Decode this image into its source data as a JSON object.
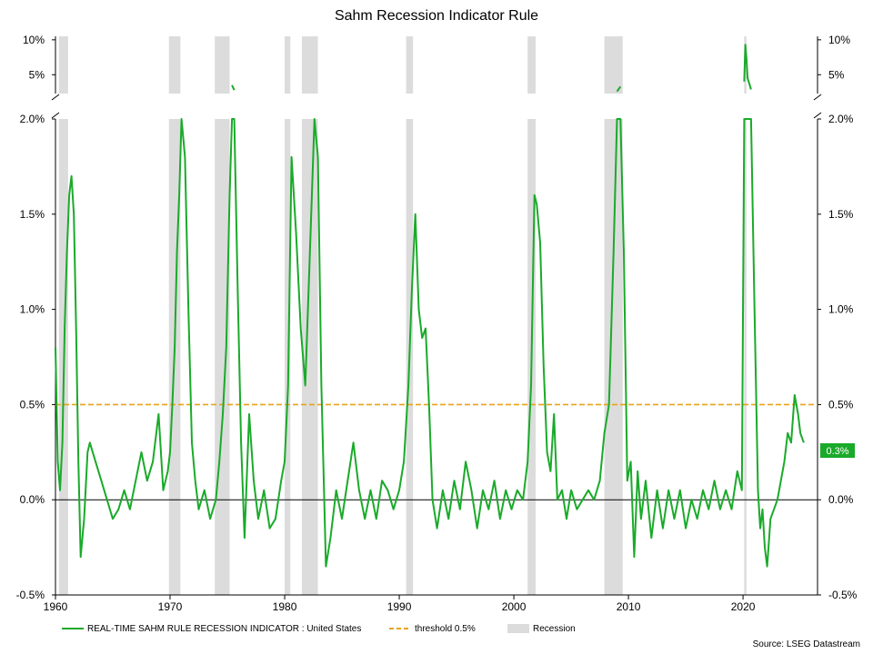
{
  "chart_data": {
    "type": "line",
    "title": "Sahm Recession Indicator Rule",
    "source": "Source: LSEG Datastream",
    "last_value_label": "0.3%",
    "x_ticks": [
      1960,
      1970,
      1980,
      1990,
      2000,
      2010,
      2020
    ],
    "x_tick_labels": [
      "1960",
      "1970",
      "1980",
      "1990",
      "2000",
      "2010",
      "2020"
    ],
    "xlim": [
      1960,
      2026.5
    ],
    "upper_panel": {
      "ylim": [
        2.3,
        10.5
      ],
      "ticks": [
        5,
        10
      ],
      "tick_labels": [
        "5%",
        "10%"
      ]
    },
    "lower_panel": {
      "ylim": [
        -0.5,
        2.0
      ],
      "ticks": [
        -0.5,
        0.0,
        0.5,
        1.0,
        1.5,
        2.0
      ],
      "tick_labels": [
        "-0.5%",
        "0.0%",
        "0.5%",
        "1.0%",
        "1.5%",
        "2.0%"
      ]
    },
    "threshold": 0.5,
    "recessions": [
      [
        1960.3,
        1961.1
      ],
      [
        1969.9,
        1970.9
      ],
      [
        1973.9,
        1975.2
      ],
      [
        1980.0,
        1980.5
      ],
      [
        1981.5,
        1982.9
      ],
      [
        1990.6,
        1991.2
      ],
      [
        2001.2,
        2001.9
      ],
      [
        2007.9,
        2009.5
      ],
      [
        2020.1,
        2020.3
      ]
    ],
    "series": [
      {
        "name": "REAL-TIME SAHM RULE RECESSION INDICATOR : United States",
        "color": "#1aaa2a",
        "x": [
          1960.0,
          1960.2,
          1960.4,
          1960.6,
          1960.8,
          1961.0,
          1961.2,
          1961.4,
          1961.6,
          1961.8,
          1962.0,
          1962.2,
          1962.5,
          1962.8,
          1963.0,
          1963.5,
          1964.0,
          1964.5,
          1965.0,
          1965.5,
          1966.0,
          1966.5,
          1967.0,
          1967.5,
          1968.0,
          1968.5,
          1969.0,
          1969.4,
          1969.8,
          1970.0,
          1970.2,
          1970.4,
          1970.6,
          1970.8,
          1971.0,
          1971.3,
          1971.6,
          1971.9,
          1972.2,
          1972.5,
          1973.0,
          1973.5,
          1974.0,
          1974.3,
          1974.6,
          1974.9,
          1975.2,
          1975.4,
          1975.6,
          1975.9,
          1976.2,
          1976.5,
          1976.9,
          1977.3,
          1977.7,
          1978.2,
          1978.7,
          1979.2,
          1979.7,
          1980.0,
          1980.3,
          1980.6,
          1981.0,
          1981.4,
          1981.8,
          1982.2,
          1982.6,
          1982.9,
          1983.2,
          1983.6,
          1984.0,
          1984.5,
          1985.0,
          1985.5,
          1986.0,
          1986.5,
          1987.0,
          1987.5,
          1988.0,
          1988.5,
          1989.0,
          1989.5,
          1990.0,
          1990.4,
          1990.8,
          1991.1,
          1991.4,
          1991.7,
          1992.0,
          1992.3,
          1992.6,
          1992.9,
          1993.3,
          1993.8,
          1994.3,
          1994.8,
          1995.3,
          1995.8,
          1996.3,
          1996.8,
          1997.3,
          1997.8,
          1998.3,
          1998.8,
          1999.3,
          1999.8,
          2000.3,
          2000.8,
          2001.2,
          2001.5,
          2001.8,
          2002.0,
          2002.3,
          2002.6,
          2002.9,
          2003.2,
          2003.5,
          2003.8,
          2004.2,
          2004.6,
          2005.0,
          2005.5,
          2006.0,
          2006.5,
          2007.0,
          2007.5,
          2007.9,
          2008.3,
          2008.7,
          2009.0,
          2009.3,
          2009.6,
          2009.9,
          2010.2,
          2010.5,
          2010.8,
          2011.1,
          2011.5,
          2012.0,
          2012.5,
          2013.0,
          2013.5,
          2014.0,
          2014.5,
          2015.0,
          2015.5,
          2016.0,
          2016.5,
          2017.0,
          2017.5,
          2018.0,
          2018.5,
          2019.0,
          2019.5,
          2019.9,
          2020.1,
          2020.2,
          2020.3,
          2020.4,
          2020.7,
          2021.0,
          2021.3,
          2021.5,
          2021.7,
          2021.9,
          2022.1,
          2022.4,
          2022.7,
          2023.0,
          2023.3,
          2023.6,
          2023.9,
          2024.2,
          2024.5,
          2024.8,
          2025.0,
          2025.3
        ],
        "y": [
          0.8,
          0.2,
          0.05,
          0.3,
          0.9,
          1.3,
          1.6,
          1.7,
          1.5,
          0.9,
          0.2,
          -0.3,
          -0.1,
          0.25,
          0.3,
          0.2,
          0.1,
          0.0,
          -0.1,
          -0.05,
          0.05,
          -0.05,
          0.1,
          0.25,
          0.1,
          0.2,
          0.45,
          0.05,
          0.15,
          0.25,
          0.5,
          0.8,
          1.3,
          1.6,
          2.4,
          1.8,
          1.0,
          0.3,
          0.1,
          -0.05,
          0.05,
          -0.1,
          0.0,
          0.2,
          0.45,
          0.8,
          1.6,
          3.5,
          2.8,
          1.1,
          0.3,
          -0.2,
          0.45,
          0.1,
          -0.1,
          0.05,
          -0.15,
          -0.1,
          0.1,
          0.2,
          0.6,
          1.8,
          1.4,
          0.9,
          0.6,
          1.3,
          2.7,
          1.8,
          0.6,
          -0.35,
          -0.2,
          0.05,
          -0.1,
          0.1,
          0.3,
          0.05,
          -0.1,
          0.05,
          -0.1,
          0.1,
          0.05,
          -0.05,
          0.05,
          0.2,
          0.6,
          1.1,
          1.5,
          1.0,
          0.85,
          0.9,
          0.5,
          0.0,
          -0.15,
          0.05,
          -0.1,
          0.1,
          -0.05,
          0.2,
          0.05,
          -0.15,
          0.05,
          -0.05,
          0.1,
          -0.1,
          0.05,
          -0.05,
          0.05,
          0.0,
          0.2,
          0.6,
          1.6,
          1.55,
          1.35,
          0.7,
          0.25,
          0.15,
          0.45,
          0.0,
          0.05,
          -0.1,
          0.05,
          -0.05,
          0.0,
          0.05,
          0.0,
          0.1,
          0.35,
          0.5,
          1.3,
          2.6,
          3.3,
          1.3,
          0.1,
          0.2,
          -0.3,
          0.15,
          -0.1,
          0.1,
          -0.2,
          0.05,
          -0.15,
          0.05,
          -0.1,
          0.05,
          -0.15,
          0.0,
          -0.1,
          0.05,
          -0.05,
          0.1,
          -0.05,
          0.05,
          -0.05,
          0.15,
          0.05,
          4.0,
          9.3,
          7.2,
          4.5,
          2.9,
          1.0,
          0.05,
          -0.15,
          -0.05,
          -0.25,
          -0.35,
          -0.1,
          -0.05,
          0.0,
          0.1,
          0.2,
          0.35,
          0.3,
          0.55,
          0.45,
          0.35,
          0.3
        ]
      },
      {
        "name": "threshold 0.5%",
        "color": "#e8a317"
      },
      {
        "name": "Recession",
        "color": "#dcdcdc"
      }
    ]
  }
}
